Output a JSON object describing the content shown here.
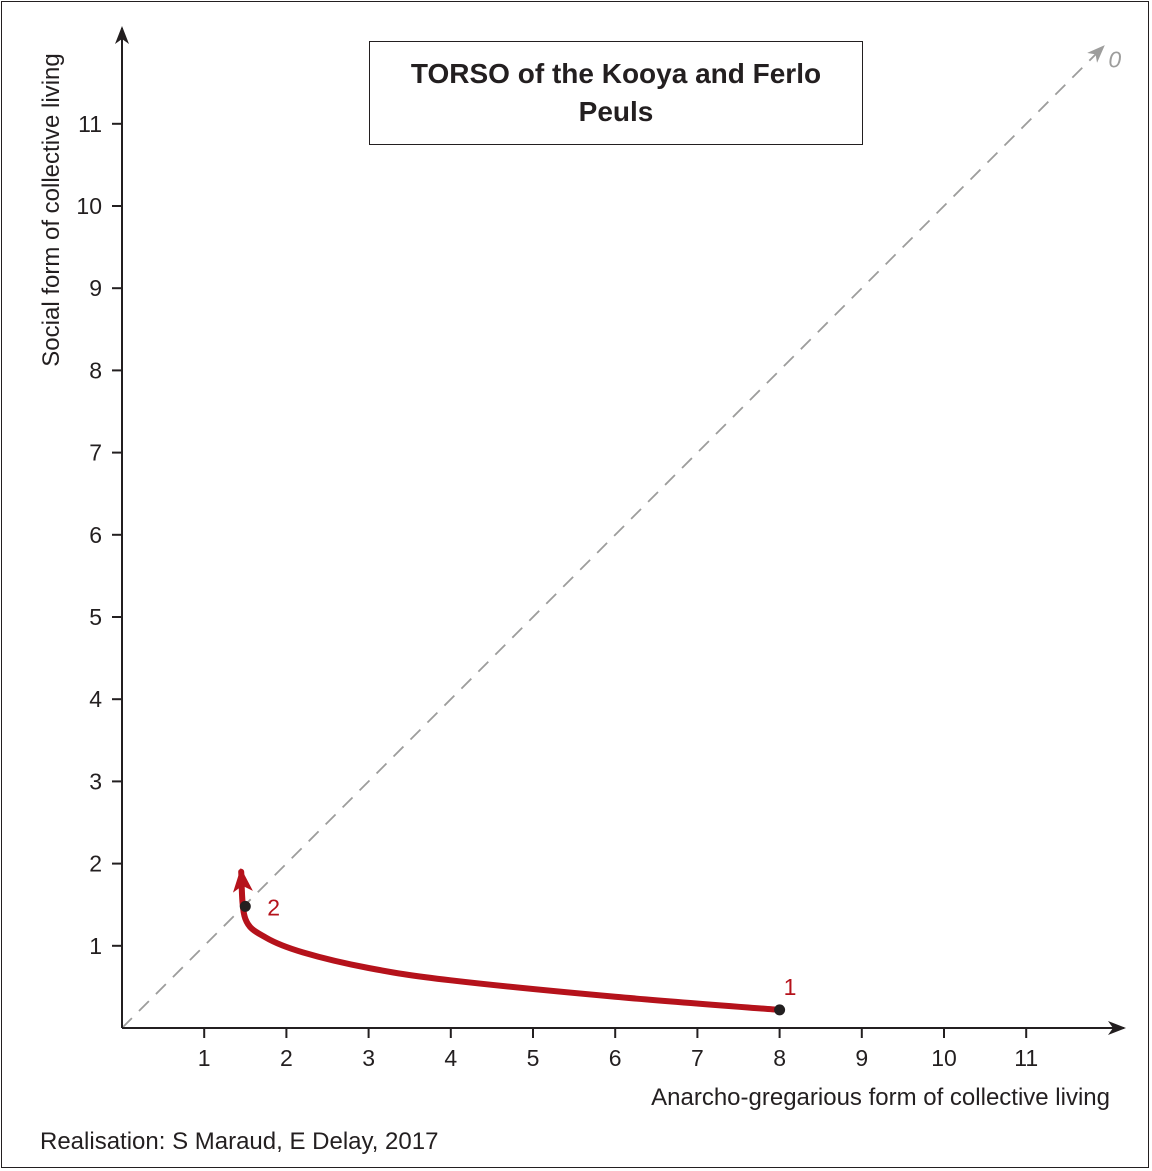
{
  "title": "TORSO of the Kooya and Ferlo Peuls",
  "credit": "Realisation: S Maraud, E Delay, 2017",
  "colors": {
    "trajectory": "#b5121b",
    "diagonal": "#9d9d9c",
    "axis": "#231f20"
  },
  "chart_data": {
    "type": "line",
    "title": "TORSO of the Kooya and Ferlo Peuls",
    "xlabel": "Anarcho-gregarious form of collective living",
    "ylabel": "Social form of collective living",
    "xlim": [
      0,
      12
    ],
    "ylim": [
      0,
      12
    ],
    "xticks": [
      "1",
      "2",
      "3",
      "4",
      "5",
      "6",
      "7",
      "8",
      "9",
      "10",
      "11"
    ],
    "yticks": [
      "1",
      "2",
      "3",
      "4",
      "5",
      "6",
      "7",
      "8",
      "9",
      "10",
      "11"
    ],
    "grid": false,
    "diagonal": {
      "style": "dashed",
      "from": [
        0,
        0
      ],
      "to": [
        12,
        12
      ],
      "end_label": "0"
    },
    "series": [
      {
        "x": [
          8.0,
          6.0,
          4.0,
          3.0,
          2.2,
          1.75,
          1.5,
          1.45
        ],
        "y": [
          0.22,
          0.38,
          0.58,
          0.73,
          0.92,
          1.1,
          1.33,
          1.9
        ]
      }
    ],
    "points": [
      {
        "label": "1",
        "x": 8.0,
        "y": 0.22
      },
      {
        "label": "2",
        "x": 1.5,
        "y": 1.48
      }
    ]
  }
}
